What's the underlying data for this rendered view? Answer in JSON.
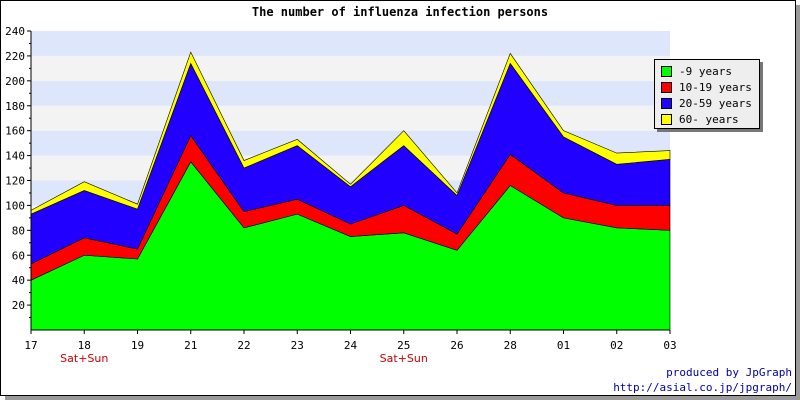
{
  "chart_data": {
    "type": "area",
    "stacked": true,
    "title": "The number of influenza infection persons",
    "categories": [
      "17",
      "18",
      "19",
      "21",
      "22",
      "23",
      "24",
      "25",
      "26",
      "28",
      "01",
      "02",
      "03"
    ],
    "sublabels": [
      "",
      "Sat+Sun",
      "",
      "",
      "",
      "",
      "",
      "Sat+Sun",
      "",
      "",
      "",
      "",
      ""
    ],
    "ylim": [
      0,
      240
    ],
    "yticks": [
      20,
      40,
      60,
      80,
      100,
      120,
      140,
      160,
      180,
      200,
      220,
      240
    ],
    "grid": "horizontal bands",
    "legend_position": "right",
    "series": [
      {
        "name": "-9 years",
        "color": "#00ff00",
        "values": [
          40,
          60,
          57,
          135,
          82,
          93,
          75,
          78,
          64,
          116,
          90,
          82,
          80
        ]
      },
      {
        "name": "10-19 years",
        "color": "#ff0000",
        "values": [
          13,
          14,
          8,
          21,
          13,
          12,
          10,
          22,
          13,
          25,
          20,
          18,
          20
        ]
      },
      {
        "name": "20-59 years",
        "color": "#2200ff",
        "values": [
          40,
          38,
          32,
          58,
          35,
          43,
          30,
          48,
          31,
          73,
          45,
          33,
          37
        ]
      },
      {
        "name": "60- years",
        "color": "#ffff00",
        "values": [
          3,
          7,
          4,
          9,
          6,
          5,
          2,
          12,
          2,
          8,
          5,
          9,
          7
        ]
      }
    ]
  },
  "footer": {
    "credit": "produced by JpGraph",
    "url": "http://asial.co.jp/jpgraph/"
  }
}
